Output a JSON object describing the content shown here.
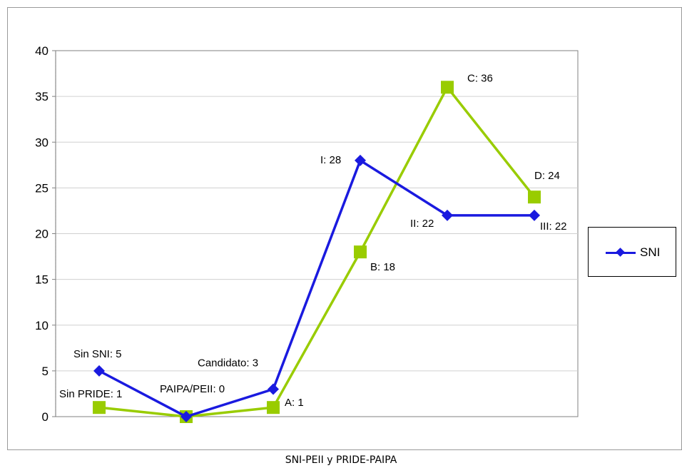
{
  "chart_data": {
    "type": "line",
    "ylim": [
      0,
      40
    ],
    "yticks": [
      0,
      5,
      10,
      15,
      20,
      25,
      30,
      35,
      40
    ],
    "x_count": 6,
    "grid": true,
    "legend_position": "right",
    "series": [
      {
        "name": "SNI",
        "color": "#1a1adf",
        "marker": "diamond",
        "values": [
          5,
          0,
          3,
          28,
          22,
          22
        ],
        "labels": [
          "Sin SNI: 5",
          "",
          "Candidato: 3",
          "I: 28",
          "II: 22",
          "III: 22"
        ]
      },
      {
        "color": "#99cc00",
        "marker": "square",
        "values": [
          1,
          0,
          1,
          18,
          36,
          24
        ],
        "labels": [
          "Sin PRIDE: 1",
          "PAIPA/PEII: 0",
          "A: 1",
          "B: 18",
          "C: 36",
          "D: 24"
        ]
      }
    ],
    "caption": "SNI-PEII y PRIDE-PAIPA"
  },
  "legend": {
    "label": "SNI",
    "line_color": "#1a1adf"
  }
}
